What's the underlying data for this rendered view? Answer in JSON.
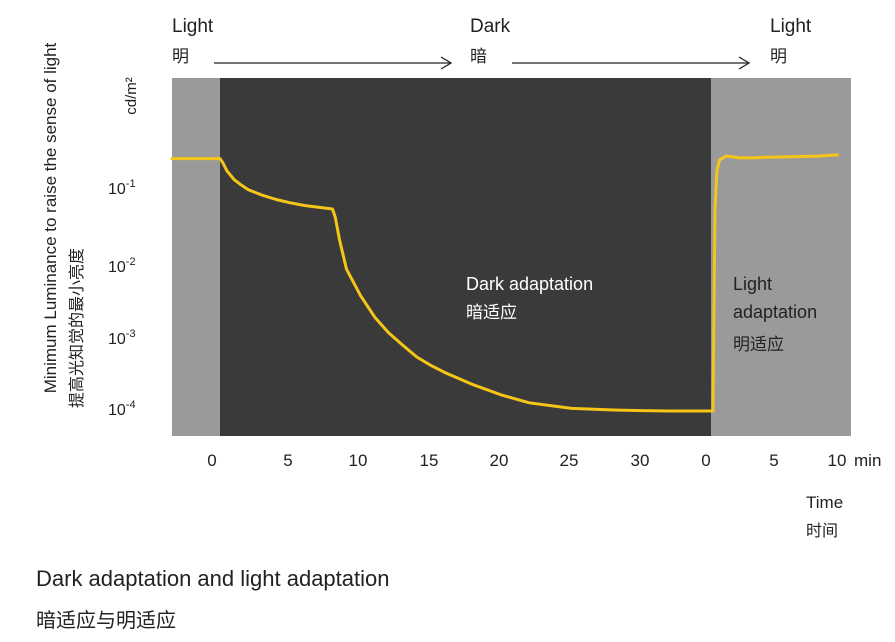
{
  "chart_data": {
    "type": "line",
    "y_axis": {
      "label_en": "Minimum Luminance to raise the sense of light",
      "label_cn": "提高光知觉的最小亮度",
      "unit": "cd/m²",
      "scale": "log",
      "tick_labels": [
        "10-1",
        "10-2",
        "10-3",
        "10-4"
      ],
      "tick_values": [
        0.1,
        0.01,
        0.001,
        0.0001
      ]
    },
    "x_axis": {
      "unit": "min",
      "label_en": "Time",
      "label_cn": "时间",
      "tick_labels": [
        "0",
        "5",
        "10",
        "15",
        "20",
        "25",
        "30",
        "0",
        "5",
        "10"
      ]
    },
    "phases": [
      {
        "label_en": "Light",
        "label_cn": "明",
        "color": "#9a9a9a"
      },
      {
        "label_en": "Dark",
        "label_cn": "暗",
        "color": "#3a3a3a"
      },
      {
        "label_en": "Light",
        "label_cn": "明",
        "color": "#9a9a9a"
      }
    ],
    "annotations": {
      "dark_en": "Dark adaptation",
      "dark_cn": "暗适应",
      "light_en_1": "Light",
      "light_en_2": "adaptation",
      "light_cn": "明适应"
    },
    "series": [
      {
        "color": "#f5c518",
        "segments": [
          {
            "phase": "light-before",
            "x": [
              -3,
              0
            ],
            "y": [
              0.25,
              0.25
            ]
          },
          {
            "phase": "dark",
            "x": [
              0,
              0.2,
              0.5,
              1,
              1.5,
              2,
              3,
              4,
              5,
              6,
              7,
              8,
              8.2,
              8.5,
              9,
              10,
              11,
              12,
              13,
              14,
              15,
              16,
              18,
              20,
              22,
              25,
              28,
              30,
              32,
              35
            ],
            "y": [
              0.25,
              0.22,
              0.17,
              0.13,
              0.11,
              0.095,
              0.08,
              0.07,
              0.063,
              0.058,
              0.055,
              0.052,
              0.04,
              0.02,
              0.008,
              0.0035,
              0.0018,
              0.0011,
              0.00075,
              0.00052,
              0.0004,
              0.00032,
              0.00022,
              0.00016,
              0.000125,
              0.000105,
              0.0001,
              9.8e-05,
              9.7e-05,
              9.7e-05
            ]
          },
          {
            "phase": "light-after",
            "x": [
              0,
              0.05,
              0.15,
              0.3,
              0.5,
              1,
              1.5,
              2,
              3,
              4,
              6,
              8,
              9.5
            ],
            "y": [
              9.7e-05,
              0.001,
              0.05,
              0.17,
              0.24,
              0.27,
              0.265,
              0.255,
              0.255,
              0.26,
              0.265,
              0.27,
              0.28
            ]
          }
        ]
      }
    ]
  },
  "caption": {
    "en": "Dark adaptation and light adaptation",
    "cn": "暗适应与明适应"
  }
}
